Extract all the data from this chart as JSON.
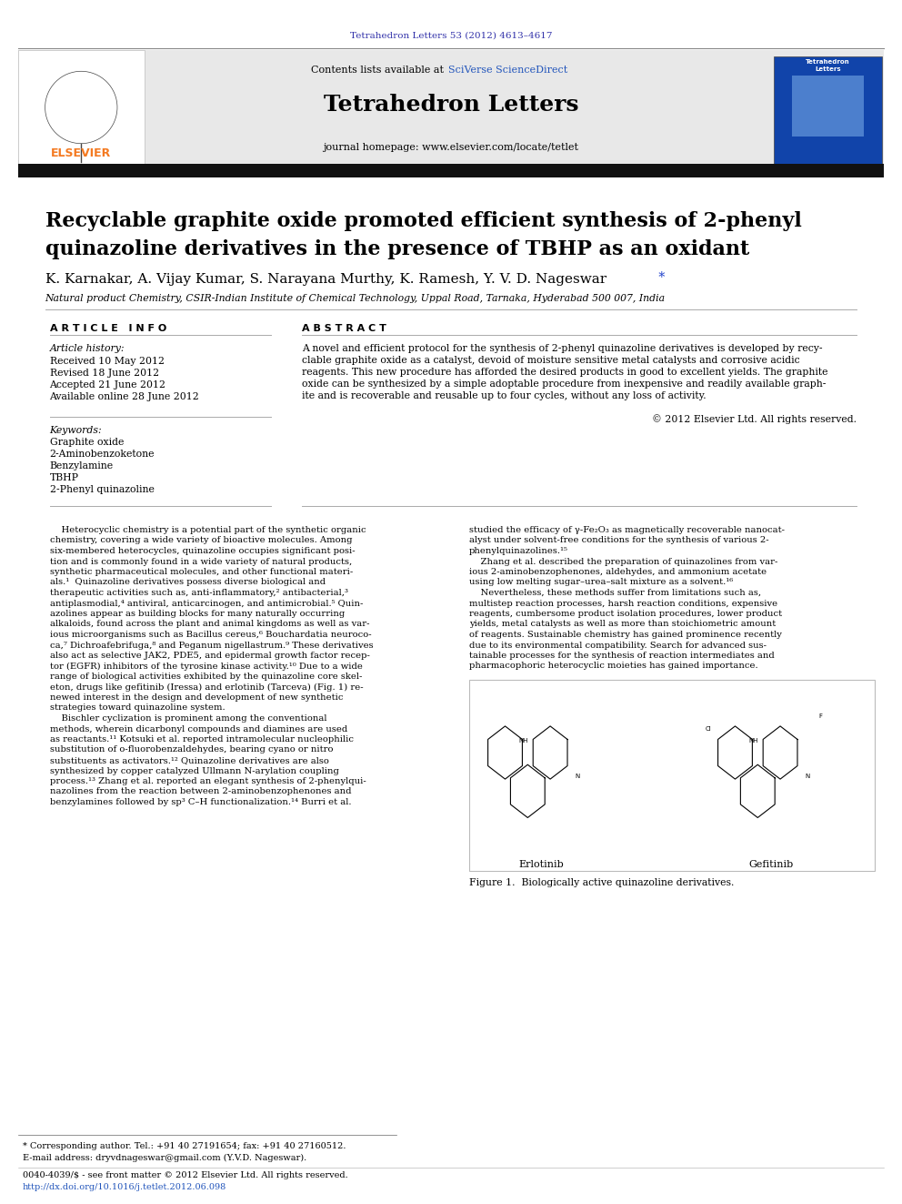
{
  "page_width": 9.92,
  "page_height": 13.23,
  "bg_color": "#ffffff",
  "journal_ref": "Tetrahedron Letters 53 (2012) 4613–4617",
  "journal_ref_color": "#3333aa",
  "sciverse_text": "SciVerse ScienceDirect",
  "sciverse_color": "#2255bb",
  "journal_name": "Tetrahedron Letters",
  "journal_homepage": "journal homepage: www.elsevier.com/locate/tetlet",
  "header_bg": "#e8e8e8",
  "elsevier_color": "#f47920",
  "article_title_line1": "Recyclable graphite oxide promoted efficient synthesis of 2-phenyl",
  "article_title_line2": "quinazoline derivatives in the presence of TBHP as an oxidant",
  "authors": "K. Karnakar, A. Vijay Kumar, S. Narayana Murthy, K. Ramesh, Y. V. D. Nageswar",
  "affiliation": "Natural product Chemistry, CSIR-Indian Institute of Chemical Technology, Uppal Road, Tarnaka, Hyderabad 500 007, India",
  "section_article_info": "A R T I C L E   I N F O",
  "section_abstract": "A B S T R A C T",
  "article_history_label": "Article history:",
  "received": "Received 10 May 2012",
  "revised": "Revised 18 June 2012",
  "accepted": "Accepted 21 June 2012",
  "available": "Available online 28 June 2012",
  "keywords_label": "Keywords:",
  "keywords": [
    "Graphite oxide",
    "2-Aminobenzoketone",
    "Benzylamine",
    "TBHP",
    "2-Phenyl quinazoline"
  ],
  "abstract_lines": [
    "A novel and efficient protocol for the synthesis of 2-phenyl quinazoline derivatives is developed by recy-",
    "clable graphite oxide as a catalyst, devoid of moisture sensitive metal catalysts and corrosive acidic",
    "reagents. This new procedure has afforded the desired products in good to excellent yields. The graphite",
    "oxide can be synthesized by a simple adoptable procedure from inexpensive and readily available graph-",
    "ite and is recoverable and reusable up to four cycles, without any loss of activity."
  ],
  "copyright": "© 2012 Elsevier Ltd. All rights reserved.",
  "body_left_col": [
    "    Heterocyclic chemistry is a potential part of the synthetic organic",
    "chemistry, covering a wide variety of bioactive molecules. Among",
    "six-membered heterocycles, quinazoline occupies significant posi-",
    "tion and is commonly found in a wide variety of natural products,",
    "synthetic pharmaceutical molecules, and other functional materi-",
    "als.¹  Quinazoline derivatives possess diverse biological and",
    "therapeutic activities such as, anti-inflammatory,² antibacterial,³",
    "antiplasmodial,⁴ antiviral, anticarcinogen, and antimicrobial.⁵ Quin-",
    "azolines appear as building blocks for many naturally occurring",
    "alkaloids, found across the plant and animal kingdoms as well as var-",
    "ious microorganisms such as Bacillus cereus,⁶ Bouchardatia neuroco-",
    "ca,⁷ Dichroafebrifuga,⁸ and Peganum nigellastrum.⁹ These derivatives",
    "also act as selective JAK2, PDE5, and epidermal growth factor recep-",
    "tor (EGFR) inhibitors of the tyrosine kinase activity.¹⁰ Due to a wide",
    "range of biological activities exhibited by the quinazoline core skel-",
    "eton, drugs like gefitinib (Iressa) and erlotinib (Tarceva) (Fig. 1) re-",
    "newed interest in the design and development of new synthetic",
    "strategies toward quinazoline system.",
    "    Bischler cyclization is prominent among the conventional",
    "methods, wherein dicarbonyl compounds and diamines are used",
    "as reactants.¹¹ Kotsuki et al. reported intramolecular nucleophilic",
    "substitution of o-fluorobenzaldehydes, bearing cyano or nitro",
    "substituents as activators.¹² Quinazoline derivatives are also",
    "synthesized by copper catalyzed Ullmann N-arylation coupling",
    "process.¹³ Zhang et al. reported an elegant synthesis of 2-phenylqui-",
    "nazolines from the reaction between 2-aminobenzophenones and",
    "benzylamines followed by sp³ C–H functionalization.¹⁴ Burri et al."
  ],
  "body_right_col": [
    "studied the efficacy of γ-Fe₂O₃ as magnetically recoverable nanocat-",
    "alyst under solvent-free conditions for the synthesis of various 2-",
    "phenylquinazolines.¹⁵",
    "    Zhang et al. described the preparation of quinazolines from var-",
    "ious 2-aminobenzophenones, aldehydes, and ammonium acetate",
    "using low melting sugar–urea–salt mixture as a solvent.¹⁶",
    "    Nevertheless, these methods suffer from limitations such as,",
    "multistep reaction processes, harsh reaction conditions, expensive",
    "reagents, cumbersome product isolation procedures, lower product",
    "yields, metal catalysts as well as more than stoichiometric amount",
    "of reagents. Sustainable chemistry has gained prominence recently",
    "due to its environmental compatibility. Search for advanced sus-",
    "tainable processes for the synthesis of reaction intermediates and",
    "pharmacophoric heterocyclic moieties has gained importance."
  ],
  "figure_caption": "Figure 1.  Biologically active quinazoline derivatives.",
  "erlotinib_label": "Erlotinib",
  "gefitinib_label": "Gefitinib",
  "footnote_star": "* Corresponding author. Tel.: +91 40 27191654; fax: +91 40 27160512.",
  "footnote_email": "E-mail address: dryvdnageswar@gmail.com (Y.V.D. Nageswar).",
  "footnote_issn": "0040-4039/$ - see front matter © 2012 Elsevier Ltd. All rights reserved.",
  "footnote_doi": "http://dx.doi.org/10.1016/j.tetlet.2012.06.098"
}
